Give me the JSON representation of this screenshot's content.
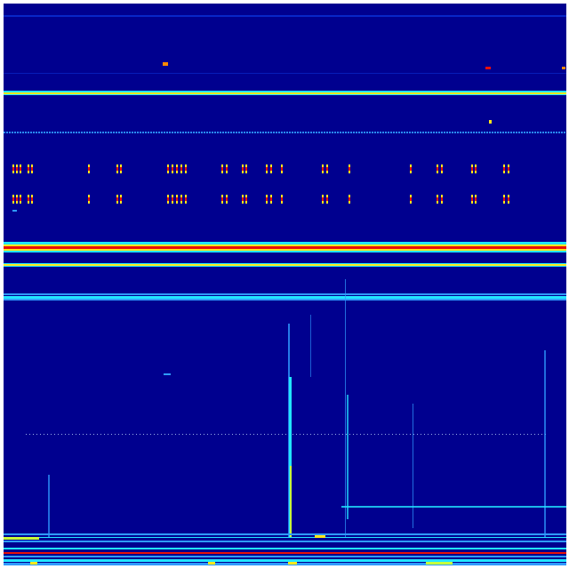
{
  "colormap": "jet",
  "colors": {
    "background": "#00008f",
    "faint_blue": "#0a2fd6",
    "light_blue": "#2f9bff",
    "cyan": "#22e6ff",
    "green_yellow": "#c8ff3a",
    "yellow": "#ffe81a",
    "orange": "#ff8a00",
    "red": "#e8100a"
  }
}
